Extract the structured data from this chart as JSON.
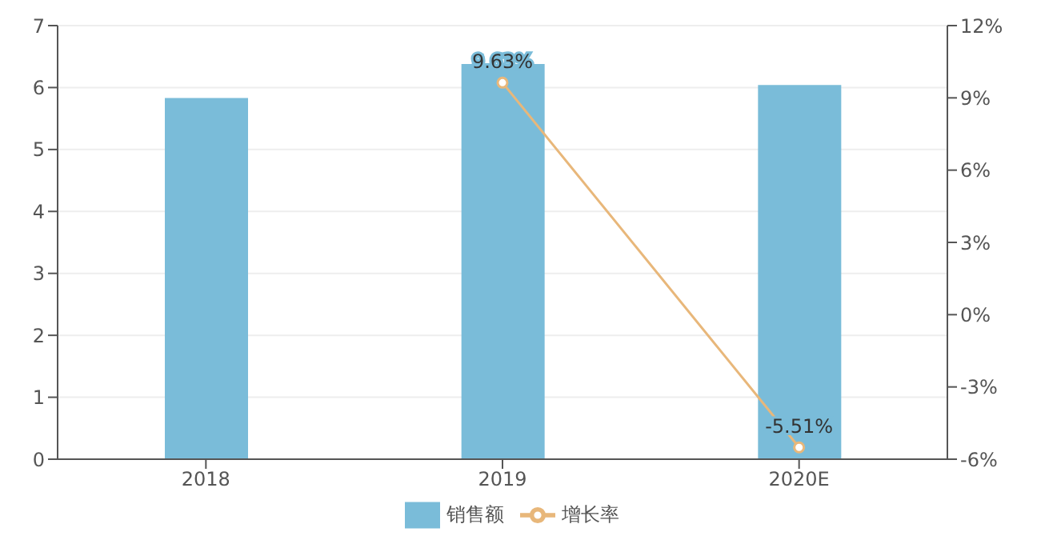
{
  "chart_data": {
    "type": "bar",
    "categories": [
      "2018",
      "2019",
      "2020E"
    ],
    "series": [
      {
        "name": "销售额",
        "color": "#7abcd9",
        "values": [
          5.83,
          6.38,
          6.04
        ]
      },
      {
        "name": "增长率",
        "type": "line",
        "axis": "y2",
        "color": "#e8b77a",
        "values": [
          null,
          9.63,
          -5.51
        ],
        "value_labels": [
          null,
          "9.63%",
          "-5.51%"
        ],
        "marker": "circle"
      }
    ],
    "ylim": [
      0,
      7
    ],
    "yticks": [
      0,
      1,
      2,
      3,
      4,
      5,
      6,
      7
    ],
    "y2lim": [
      -6,
      12
    ],
    "y2ticks": [
      {
        "value": -6,
        "label": "-6%"
      },
      {
        "value": -3,
        "label": "-3%"
      },
      {
        "value": 0,
        "label": "0%"
      },
      {
        "value": 3,
        "label": "3%"
      },
      {
        "value": 6,
        "label": "6%"
      },
      {
        "value": 9,
        "label": "9%"
      },
      {
        "value": 12,
        "label": "12%"
      }
    ],
    "grid": "y",
    "legend": "bottom"
  }
}
